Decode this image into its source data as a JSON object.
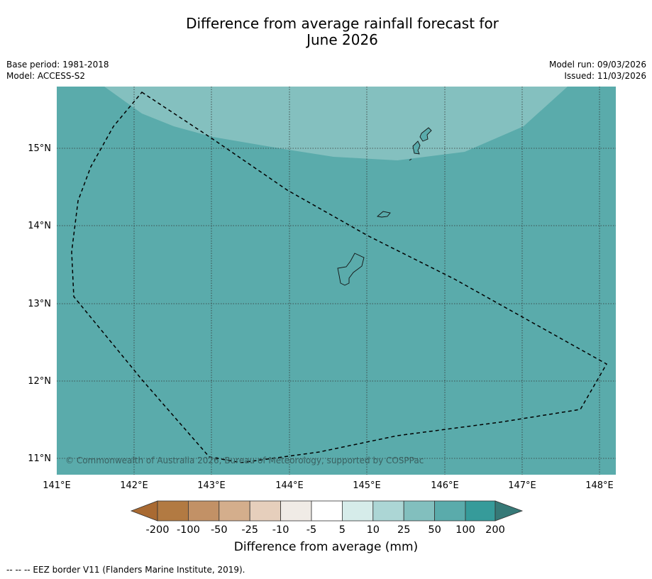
{
  "title_line1": "Difference from average rainfall forecast for",
  "title_line2": "June 2026",
  "meta_left": {
    "base_period": "Base period: 1981-2018",
    "model": "Model: ACCESS-S2"
  },
  "meta_right": {
    "model_run": "Model run: 09/03/2026",
    "issued": "Issued: 11/03/2026"
  },
  "map": {
    "lon_range": [
      141.0,
      148.2
    ],
    "lat_range": [
      10.8,
      15.8
    ],
    "lon_ticks": [
      "141°E",
      "142°E",
      "143°E",
      "144°E",
      "145°E",
      "146°E",
      "147°E",
      "148°E"
    ],
    "lat_ticks": [
      "15°N",
      "14°N",
      "13°N",
      "12°N",
      "11°N"
    ],
    "gridlines": true,
    "copyright": "© Commonwealth of Australia 2026, Bureau of Meteorology, supported by COSPPac",
    "base_fill_color": "#5aabab",
    "upper_fill_color": "#84c0bf"
  },
  "colorbar": {
    "labels": [
      "-200",
      "-100",
      "-50",
      "-25",
      "-10",
      "-5",
      "5",
      "10",
      "25",
      "50",
      "100",
      "200"
    ],
    "colors": [
      "#a96a32",
      "#b27a42",
      "#c29166",
      "#d4ae8c",
      "#e6cfbc",
      "#f0ebe6",
      "#ffffff",
      "#d6ecea",
      "#acd6d5",
      "#82bfbe",
      "#5aabab",
      "#369b9a",
      "#367977"
    ],
    "title": "Difference from average (mm)"
  },
  "footnote": "--  --  -- EEZ border V11 (Flanders Marine Institute, 2019)."
}
